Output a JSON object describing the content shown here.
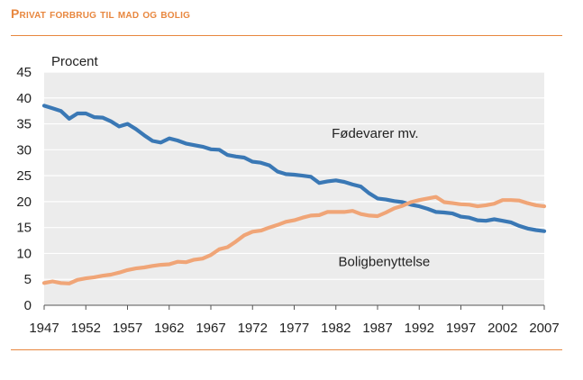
{
  "title": "Privat forbrug til mad og bolig",
  "chart_data": {
    "type": "line",
    "title": "Privat forbrug til mad og bolig",
    "ylabel": "Procent",
    "xlabel": "",
    "xlim": [
      1947,
      2007
    ],
    "ylim": [
      0,
      45
    ],
    "xticks": [
      1947,
      1952,
      1957,
      1962,
      1967,
      1972,
      1977,
      1982,
      1987,
      1992,
      1997,
      2002,
      2007
    ],
    "yticks": [
      0,
      5,
      10,
      15,
      20,
      25,
      30,
      35,
      40,
      45
    ],
    "grid": true,
    "colors": {
      "series_1": "#3a78b5",
      "series_2": "#f0a577",
      "background": "#ececec",
      "grid": "#ffffff",
      "accent": "#e8873f"
    },
    "x": [
      1947,
      1948,
      1949,
      1950,
      1951,
      1952,
      1953,
      1954,
      1955,
      1956,
      1957,
      1958,
      1959,
      1960,
      1961,
      1962,
      1963,
      1964,
      1965,
      1966,
      1967,
      1968,
      1969,
      1970,
      1971,
      1972,
      1973,
      1974,
      1975,
      1976,
      1977,
      1978,
      1979,
      1980,
      1981,
      1982,
      1983,
      1984,
      1985,
      1986,
      1987,
      1988,
      1989,
      1990,
      1991,
      1992,
      1993,
      1994,
      1995,
      1996,
      1997,
      1998,
      1999,
      2000,
      2001,
      2002,
      2003,
      2004,
      2005,
      2006,
      2007
    ],
    "series": [
      {
        "name": "Fødevarer mv.",
        "values": [
          38.5,
          38.0,
          37.5,
          36.0,
          37.0,
          37.0,
          36.3,
          36.2,
          35.5,
          34.5,
          35.0,
          34.0,
          32.8,
          31.7,
          31.4,
          32.2,
          31.8,
          31.2,
          30.9,
          30.6,
          30.1,
          30.0,
          29.0,
          28.7,
          28.5,
          27.7,
          27.5,
          27.0,
          25.8,
          25.3,
          25.2,
          25.0,
          24.8,
          23.6,
          23.9,
          24.1,
          23.8,
          23.3,
          22.9,
          21.6,
          20.6,
          20.4,
          20.1,
          19.9,
          19.4,
          19.1,
          18.6,
          18.0,
          17.9,
          17.7,
          17.1,
          16.9,
          16.4,
          16.3,
          16.6,
          16.3,
          16.0,
          15.3,
          14.8,
          14.5,
          14.3
        ]
      },
      {
        "name": "Boligbenyttelse",
        "values": [
          4.3,
          4.6,
          4.3,
          4.2,
          4.9,
          5.2,
          5.4,
          5.7,
          5.9,
          6.3,
          6.8,
          7.1,
          7.3,
          7.6,
          7.8,
          7.9,
          8.4,
          8.3,
          8.8,
          9.0,
          9.7,
          10.8,
          11.2,
          12.3,
          13.5,
          14.2,
          14.4,
          15.0,
          15.5,
          16.1,
          16.4,
          16.9,
          17.3,
          17.4,
          18.0,
          18.0,
          18.0,
          18.2,
          17.6,
          17.3,
          17.2,
          17.9,
          18.7,
          19.2,
          19.9,
          20.3,
          20.6,
          20.9,
          19.9,
          19.7,
          19.5,
          19.4,
          19.1,
          19.3,
          19.6,
          20.3,
          20.3,
          20.2,
          19.7,
          19.3,
          19.1
        ]
      }
    ],
    "annotations": [
      {
        "text": "Fødevarer mv.",
        "x": 1981.5,
        "y": 32.3
      },
      {
        "text": "Boligbenyttelse",
        "x": 1982.3,
        "y": 7.6
      }
    ]
  }
}
